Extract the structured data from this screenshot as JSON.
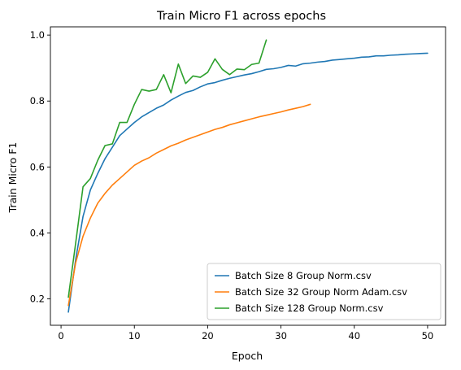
{
  "chart_data": {
    "type": "line",
    "title": "Train Micro F1 across epochs",
    "xlabel": "Epoch",
    "ylabel": "Train Micro F1",
    "xlim": [
      -1.45,
      52.45
    ],
    "ylim": [
      0.12,
      1.025
    ],
    "xticks": [
      0,
      10,
      20,
      30,
      40,
      50
    ],
    "yticks": [
      0.2,
      0.4,
      0.6,
      0.8,
      1.0
    ],
    "xtick_labels": [
      "0",
      "10",
      "20",
      "30",
      "40",
      "50"
    ],
    "ytick_labels": [
      "0.2",
      "0.4",
      "0.6",
      "0.8",
      "1.0"
    ],
    "grid": false,
    "legend_position": "lower-right",
    "series": [
      {
        "name": "Batch Size 8 Group Norm.csv",
        "color": "#1f77b4",
        "x": [
          1,
          2,
          3,
          4,
          5,
          6,
          7,
          8,
          9,
          10,
          11,
          12,
          13,
          14,
          15,
          16,
          17,
          18,
          19,
          20,
          21,
          22,
          23,
          24,
          25,
          26,
          27,
          28,
          29,
          30,
          31,
          32,
          33,
          34,
          35,
          36,
          37,
          38,
          39,
          40,
          41,
          42,
          43,
          44,
          45,
          46,
          47,
          48,
          49,
          50
        ],
        "y": [
          0.16,
          0.32,
          0.45,
          0.53,
          0.58,
          0.625,
          0.66,
          0.695,
          0.715,
          0.735,
          0.752,
          0.765,
          0.778,
          0.788,
          0.803,
          0.815,
          0.826,
          0.832,
          0.843,
          0.852,
          0.856,
          0.863,
          0.869,
          0.874,
          0.879,
          0.883,
          0.889,
          0.896,
          0.898,
          0.902,
          0.908,
          0.906,
          0.913,
          0.915,
          0.918,
          0.92,
          0.924,
          0.926,
          0.928,
          0.93,
          0.933,
          0.934,
          0.937,
          0.937,
          0.939,
          0.94,
          0.942,
          0.943,
          0.944,
          0.945
        ]
      },
      {
        "name": "Batch Size 32 Group Norm Adam.csv",
        "color": "#ff7f0e",
        "x": [
          1,
          2,
          3,
          4,
          5,
          6,
          7,
          8,
          9,
          10,
          11,
          12,
          13,
          14,
          15,
          16,
          17,
          18,
          19,
          20,
          21,
          22,
          23,
          24,
          25,
          26,
          27,
          28,
          29,
          30,
          31,
          32,
          33,
          34
        ],
        "y": [
          0.18,
          0.31,
          0.39,
          0.445,
          0.49,
          0.52,
          0.545,
          0.565,
          0.585,
          0.605,
          0.618,
          0.628,
          0.642,
          0.653,
          0.664,
          0.672,
          0.682,
          0.69,
          0.698,
          0.706,
          0.714,
          0.72,
          0.728,
          0.734,
          0.74,
          0.746,
          0.752,
          0.757,
          0.762,
          0.767,
          0.773,
          0.778,
          0.783,
          0.79
        ]
      },
      {
        "name": "Batch Size 128 Group Norm.csv",
        "color": "#2ca02c",
        "x": [
          1,
          2,
          3,
          4,
          5,
          6,
          7,
          8,
          9,
          10,
          11,
          12,
          13,
          14,
          15,
          16,
          17,
          18,
          19,
          20,
          21,
          22,
          23,
          24,
          25,
          26,
          27,
          28
        ],
        "y": [
          0.205,
          0.37,
          0.54,
          0.565,
          0.62,
          0.665,
          0.67,
          0.735,
          0.735,
          0.79,
          0.835,
          0.83,
          0.835,
          0.88,
          0.825,
          0.912,
          0.853,
          0.876,
          0.872,
          0.887,
          0.928,
          0.896,
          0.88,
          0.897,
          0.895,
          0.911,
          0.915,
          0.985
        ]
      }
    ]
  }
}
